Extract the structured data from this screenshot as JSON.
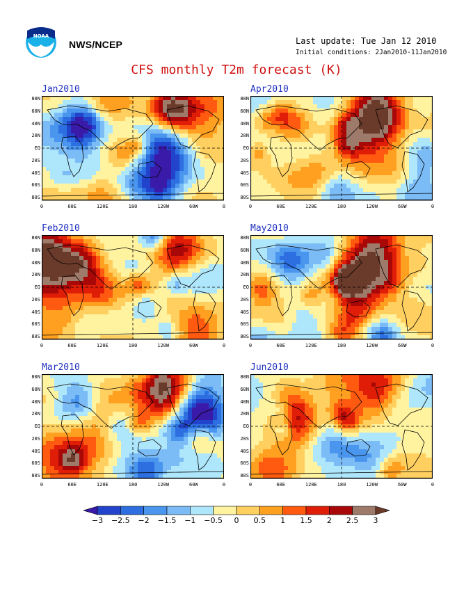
{
  "header": {
    "agency": "NWS/NCEP",
    "last_update": "Last update: Tue Jan 12 2010",
    "initial_conditions": "Initial conditions: 2Jan2010-11Jan2010",
    "title": "CFS monthly T2m forecast (K)",
    "logo_icon": "noaa-logo-icon"
  },
  "axes": {
    "y_ticks": [
      "80N",
      "60N",
      "40N",
      "20N",
      "EQ",
      "20S",
      "40S",
      "60S",
      "80S"
    ],
    "x_ticks": [
      "0",
      "60E",
      "120E",
      "180",
      "120W",
      "60W",
      "0"
    ]
  },
  "panels": [
    {
      "month": "Jan2010",
      "column": "left",
      "row": 0
    },
    {
      "month": "Feb2010",
      "column": "left",
      "row": 1
    },
    {
      "month": "Mar2010",
      "column": "left",
      "row": 2
    },
    {
      "month": "Apr2010",
      "column": "right",
      "row": 0
    },
    {
      "month": "May2010",
      "column": "right",
      "row": 1
    },
    {
      "month": "Jun2010",
      "column": "right",
      "row": 2
    }
  ],
  "colorbar": {
    "labels": [
      "-3",
      "-2.5",
      "-2",
      "-1.5",
      "-1",
      "-0.5",
      "0",
      "0.5",
      "1",
      "1.5",
      "2",
      "2.5",
      "3"
    ],
    "colors": [
      "#3a1aa8",
      "#2244cc",
      "#2d6fe0",
      "#4a96ee",
      "#7cbcf6",
      "#aee6fb",
      "#fff3a0",
      "#ffd060",
      "#ffa020",
      "#ff5a10",
      "#e01e08",
      "#a80808",
      "#9e7a6a",
      "#6a3a2a"
    ]
  }
}
